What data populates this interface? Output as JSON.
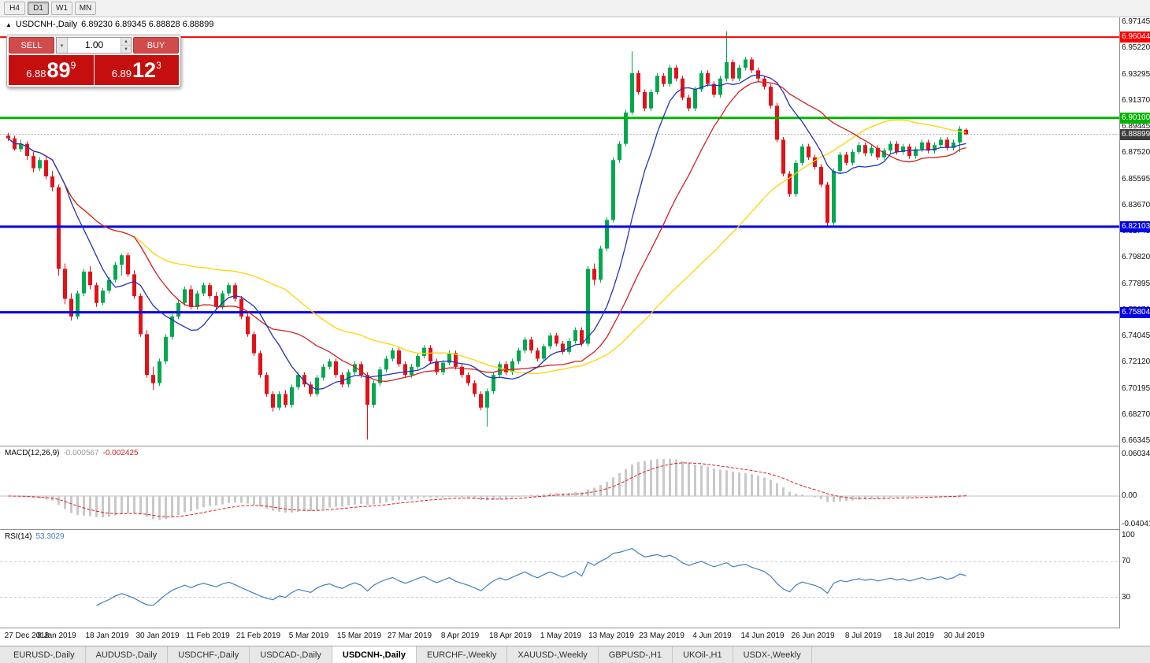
{
  "toolbar": {
    "timeframes": [
      "H4",
      "D1",
      "W1",
      "MN"
    ],
    "active_timeframe": "D1"
  },
  "chart": {
    "collapse_icon": "▲",
    "symbol_label": "USDCNH-,Daily",
    "ohlc_values": "6.89230 6.89345 6.88828 6.88899"
  },
  "trade_panel": {
    "sell_label": "SELL",
    "buy_label": "BUY",
    "volume_value": "1.00",
    "sell_price_base": "6.88",
    "sell_price_big": "89",
    "sell_price_sup": "9",
    "buy_price_base": "6.89",
    "buy_price_big": "12",
    "buy_price_sup": "3"
  },
  "price_axis": {
    "ticks": [
      "6.97145",
      "6.95220",
      "6.93295",
      "6.91370",
      "6.89445",
      "6.87520",
      "6.85595",
      "6.83670",
      "6.81745",
      "6.79820",
      "6.77895",
      "6.75970",
      "6.74045",
      "6.72120",
      "6.70195",
      "6.68270",
      "6.66345"
    ],
    "badges": [
      {
        "label": "6.96044",
        "price": 6.96044,
        "bg": "#ff0000"
      },
      {
        "label": "6.90100",
        "price": 6.901,
        "bg": "#00b400"
      },
      {
        "label": "6.88899",
        "price": 6.88899,
        "bg": "#3c3c3c"
      },
      {
        "label": "6.82103",
        "price": 6.82103,
        "bg": "#0000e6"
      },
      {
        "label": "6.75804",
        "price": 6.75804,
        "bg": "#0000e6"
      }
    ]
  },
  "macd_panel": {
    "name_label": "MACD(12,26,9)",
    "value_main": "-0.000567",
    "value_signal": "-0.002425",
    "axis_labels": [
      {
        "label": "0.060342",
        "value": 0.060342
      },
      {
        "label": "0.00",
        "value": 0
      },
      {
        "label": "-0.040411",
        "value": -0.040411
      }
    ]
  },
  "rsi_panel": {
    "name_label": "RSI(14)",
    "value": "53.3029",
    "axis_labels": [
      {
        "label": "100",
        "value": 100
      },
      {
        "label": "70",
        "value": 70
      },
      {
        "label": "30",
        "value": 30
      }
    ]
  },
  "date_axis": [
    "27 Dec 2018",
    "8 Jan 2019",
    "18 Jan 2019",
    "30 Jan 2019",
    "11 Feb 2019",
    "21 Feb 2019",
    "5 Mar 2019",
    "15 Mar 2019",
    "27 Mar 2019",
    "8 Apr 2019",
    "18 Apr 2019",
    "1 May 2019",
    "13 May 2019",
    "23 May 2019",
    "4 Jun 2019",
    "14 Jun 2019",
    "26 Jun 2019",
    "8 Jul 2019",
    "18 Jul 2019",
    "30 Jul 2019"
  ],
  "tabs": {
    "items": [
      "EURUSD-,Daily",
      "AUDUSD-,Daily",
      "USDCHF-,Daily",
      "USDCAD-,Daily",
      "USDCNH-,Daily",
      "EURCHF-,Weekly",
      "XAUUSD-,Weekly",
      "GBPUSD-,H1",
      "UKOil-,H1",
      "USDX-,Weekly"
    ],
    "active": "USDCNH-,Daily"
  },
  "chart_data": {
    "type": "candlestick",
    "title": "USDCNH-,Daily",
    "y_range": [
      6.66,
      6.975
    ],
    "colors": {
      "up": "#00a84f",
      "down": "#e31219",
      "ma_fast": "#2233bb",
      "ma_mid": "#d02020",
      "ma_slow": "#ffd400",
      "macd_hist": "#c9c9c9",
      "macd_signal": "#e02020",
      "rsi": "#3f7fc1",
      "current_price_line": "#b0b0b0"
    },
    "hlines": [
      {
        "price": 6.96044,
        "color": "#ff0000",
        "width": 2
      },
      {
        "price": 6.901,
        "color": "#00b400",
        "width": 3
      },
      {
        "price": 6.82103,
        "color": "#0000e6",
        "width": 3
      },
      {
        "price": 6.75804,
        "color": "#0000e6",
        "width": 3
      }
    ],
    "current_price": 6.88899,
    "ma_periods": {
      "fast": 10,
      "mid": 21,
      "slow": 45
    },
    "macd_params": {
      "fast": 12,
      "slow": 26,
      "signal": 9,
      "y_range": [
        -0.0478,
        0.0705
      ]
    },
    "rsi_params": {
      "period": 14,
      "levels": [
        70,
        30
      ],
      "y_range": [
        -5,
        105
      ]
    },
    "candles": [
      [
        6.888,
        6.89,
        6.884,
        6.886
      ],
      [
        6.886,
        6.888,
        6.877,
        6.878
      ],
      [
        6.878,
        6.885,
        6.876,
        6.882
      ],
      [
        6.882,
        6.884,
        6.87,
        6.873
      ],
      [
        6.873,
        6.876,
        6.861,
        6.864
      ],
      [
        6.864,
        6.872,
        6.862,
        6.87
      ],
      [
        6.87,
        6.873,
        6.856,
        6.858
      ],
      [
        6.858,
        6.862,
        6.847,
        6.85
      ],
      [
        6.85,
        6.852,
        6.785,
        6.79
      ],
      [
        6.79,
        6.794,
        6.764,
        6.768
      ],
      [
        6.768,
        6.772,
        6.752,
        6.755
      ],
      [
        6.755,
        6.774,
        6.753,
        6.772
      ],
      [
        6.772,
        6.79,
        6.77,
        6.788
      ],
      [
        6.788,
        6.792,
        6.775,
        6.778
      ],
      [
        6.778,
        6.78,
        6.762,
        6.765
      ],
      [
        6.765,
        6.776,
        6.763,
        6.774
      ],
      [
        6.774,
        6.784,
        6.772,
        6.782
      ],
      [
        6.782,
        6.795,
        6.78,
        6.793
      ],
      [
        6.793,
        6.801,
        6.785,
        6.8
      ],
      [
        6.8,
        6.802,
        6.784,
        6.786
      ],
      [
        6.786,
        6.789,
        6.768,
        6.77
      ],
      [
        6.77,
        6.772,
        6.74,
        6.742
      ],
      [
        6.742,
        6.745,
        6.71,
        6.712
      ],
      [
        6.712,
        6.718,
        6.701,
        6.706
      ],
      [
        6.706,
        6.724,
        6.704,
        6.722
      ],
      [
        6.722,
        6.742,
        6.72,
        6.74
      ],
      [
        6.74,
        6.757,
        6.738,
        6.755
      ],
      [
        6.755,
        6.767,
        6.753,
        6.765
      ],
      [
        6.765,
        6.777,
        6.763,
        6.775
      ],
      [
        6.775,
        6.778,
        6.76,
        6.762
      ],
      [
        6.762,
        6.774,
        6.76,
        6.772
      ],
      [
        6.772,
        6.78,
        6.77,
        6.778
      ],
      [
        6.778,
        6.78,
        6.768,
        6.77
      ],
      [
        6.77,
        6.773,
        6.76,
        6.762
      ],
      [
        6.762,
        6.774,
        6.76,
        6.772
      ],
      [
        6.772,
        6.78,
        6.77,
        6.778
      ],
      [
        6.778,
        6.78,
        6.766,
        6.768
      ],
      [
        6.768,
        6.77,
        6.753,
        6.755
      ],
      [
        6.755,
        6.757,
        6.74,
        6.742
      ],
      [
        6.742,
        6.744,
        6.726,
        6.728
      ],
      [
        6.728,
        6.73,
        6.71,
        6.712
      ],
      [
        6.712,
        6.714,
        6.696,
        6.698
      ],
      [
        6.698,
        6.7,
        6.685,
        6.688
      ],
      [
        6.688,
        6.7,
        6.686,
        6.698
      ],
      [
        6.698,
        6.701,
        6.688,
        6.69
      ],
      [
        6.69,
        6.705,
        6.688,
        6.703
      ],
      [
        6.703,
        6.714,
        6.701,
        6.712
      ],
      [
        6.712,
        6.714,
        6.703,
        6.705
      ],
      [
        6.705,
        6.707,
        6.696,
        6.698
      ],
      [
        6.698,
        6.712,
        6.696,
        6.71
      ],
      [
        6.71,
        6.72,
        6.708,
        6.718
      ],
      [
        6.718,
        6.724,
        6.716,
        6.722
      ],
      [
        6.722,
        6.724,
        6.71,
        6.712
      ],
      [
        6.712,
        6.714,
        6.703,
        6.705
      ],
      [
        6.705,
        6.716,
        6.703,
        6.714
      ],
      [
        6.714,
        6.722,
        6.712,
        6.72
      ],
      [
        6.72,
        6.722,
        6.71,
        6.712
      ],
      [
        6.712,
        6.714,
        6.6645,
        6.69
      ],
      [
        6.69,
        6.708,
        6.688,
        6.706
      ],
      [
        6.706,
        6.718,
        6.704,
        6.716
      ],
      [
        6.716,
        6.726,
        6.714,
        6.724
      ],
      [
        6.724,
        6.732,
        6.722,
        6.73
      ],
      [
        6.73,
        6.732,
        6.718,
        6.72
      ],
      [
        6.72,
        6.722,
        6.71,
        6.712
      ],
      [
        6.712,
        6.72,
        6.71,
        6.718
      ],
      [
        6.718,
        6.728,
        6.716,
        6.726
      ],
      [
        6.726,
        6.734,
        6.724,
        6.732
      ],
      [
        6.732,
        6.734,
        6.72,
        6.722
      ],
      [
        6.722,
        6.724,
        6.712,
        6.714
      ],
      [
        6.714,
        6.723,
        6.712,
        6.721
      ],
      [
        6.721,
        6.73,
        6.719,
        6.728
      ],
      [
        6.728,
        6.73,
        6.716,
        6.718
      ],
      [
        6.718,
        6.72,
        6.71,
        6.712
      ],
      [
        6.712,
        6.714,
        6.704,
        6.706
      ],
      [
        6.706,
        6.708,
        6.696,
        6.698
      ],
      [
        6.698,
        6.7,
        6.686,
        6.688
      ],
      [
        6.688,
        6.702,
        6.674,
        6.7
      ],
      [
        6.7,
        6.714,
        6.698,
        6.712
      ],
      [
        6.712,
        6.722,
        6.71,
        6.72
      ],
      [
        6.72,
        6.722,
        6.712,
        6.714
      ],
      [
        6.714,
        6.724,
        6.712,
        6.722
      ],
      [
        6.722,
        6.732,
        6.72,
        6.73
      ],
      [
        6.73,
        6.74,
        6.728,
        6.738
      ],
      [
        6.738,
        6.74,
        6.728,
        6.73
      ],
      [
        6.73,
        6.732,
        6.722,
        6.724
      ],
      [
        6.724,
        6.735,
        6.722,
        6.733
      ],
      [
        6.733,
        6.743,
        6.731,
        6.741
      ],
      [
        6.741,
        6.743,
        6.733,
        6.735
      ],
      [
        6.735,
        6.737,
        6.727,
        6.729
      ],
      [
        6.729,
        6.739,
        6.727,
        6.737
      ],
      [
        6.737,
        6.747,
        6.735,
        6.745
      ],
      [
        6.745,
        6.747,
        6.733,
        6.735
      ],
      [
        6.735,
        6.792,
        6.733,
        6.79
      ],
      [
        6.79,
        6.794,
        6.778,
        6.782
      ],
      [
        6.782,
        6.807,
        6.78,
        6.805
      ],
      [
        6.805,
        6.828,
        6.803,
        6.826
      ],
      [
        6.826,
        6.872,
        6.824,
        6.87
      ],
      [
        6.87,
        6.884,
        6.868,
        6.882
      ],
      [
        6.882,
        6.907,
        6.88,
        6.905
      ],
      [
        6.905,
        6.95,
        6.903,
        6.934
      ],
      [
        6.934,
        6.936,
        6.918,
        6.92
      ],
      [
        6.92,
        6.922,
        6.906,
        6.908
      ],
      [
        6.908,
        6.922,
        6.906,
        6.92
      ],
      [
        6.92,
        6.934,
        6.918,
        6.932
      ],
      [
        6.932,
        6.934,
        6.924,
        6.926
      ],
      [
        6.926,
        6.94,
        6.924,
        6.938
      ],
      [
        6.938,
        6.94,
        6.928,
        6.93
      ],
      [
        6.93,
        6.932,
        6.914,
        6.916
      ],
      [
        6.916,
        6.918,
        6.906,
        6.908
      ],
      [
        6.908,
        6.924,
        6.906,
        6.922
      ],
      [
        6.922,
        6.936,
        6.92,
        6.934
      ],
      [
        6.934,
        6.936,
        6.924,
        6.926
      ],
      [
        6.926,
        6.928,
        6.916,
        6.918
      ],
      [
        6.918,
        6.932,
        6.916,
        6.93
      ],
      [
        6.93,
        6.9648,
        6.928,
        6.942
      ],
      [
        6.942,
        6.944,
        6.928,
        6.93
      ],
      [
        6.93,
        6.94,
        6.928,
        6.938
      ],
      [
        6.938,
        6.946,
        6.936,
        6.944
      ],
      [
        6.944,
        6.946,
        6.934,
        6.936
      ],
      [
        6.936,
        6.938,
        6.928,
        6.93
      ],
      [
        6.93,
        6.932,
        6.922,
        6.924
      ],
      [
        6.924,
        6.926,
        6.908,
        6.91
      ],
      [
        6.91,
        6.912,
        6.883,
        6.885
      ],
      [
        6.885,
        6.887,
        6.858,
        6.86
      ],
      [
        6.86,
        6.862,
        6.843,
        6.845
      ],
      [
        6.845,
        6.87,
        6.843,
        6.868
      ],
      [
        6.868,
        6.882,
        6.866,
        6.88
      ],
      [
        6.88,
        6.882,
        6.87,
        6.872
      ],
      [
        6.872,
        6.874,
        6.863,
        6.865
      ],
      [
        6.865,
        6.867,
        6.85,
        6.852
      ],
      [
        6.852,
        6.854,
        6.821,
        6.824
      ],
      [
        6.824,
        6.864,
        6.822,
        6.862
      ],
      [
        6.862,
        6.876,
        6.86,
        6.874
      ],
      [
        6.874,
        6.876,
        6.866,
        6.868
      ],
      [
        6.868,
        6.878,
        6.866,
        6.876
      ],
      [
        6.876,
        6.883,
        6.874,
        6.881
      ],
      [
        6.881,
        6.883,
        6.873,
        6.875
      ],
      [
        6.875,
        6.881,
        6.873,
        6.879
      ],
      [
        6.879,
        6.881,
        6.87,
        6.872
      ],
      [
        6.872,
        6.879,
        6.87,
        6.877
      ],
      [
        6.877,
        6.884,
        6.875,
        6.882
      ],
      [
        6.882,
        6.884,
        6.874,
        6.876
      ],
      [
        6.876,
        6.882,
        6.874,
        6.88
      ],
      [
        6.88,
        6.882,
        6.871,
        6.873
      ],
      [
        6.873,
        6.88,
        6.871,
        6.878
      ],
      [
        6.878,
        6.885,
        6.876,
        6.883
      ],
      [
        6.883,
        6.885,
        6.875,
        6.877
      ],
      [
        6.877,
        6.883,
        6.875,
        6.881
      ],
      [
        6.881,
        6.887,
        6.879,
        6.885
      ],
      [
        6.885,
        6.887,
        6.877,
        6.879
      ],
      [
        6.879,
        6.885,
        6.877,
        6.883
      ],
      [
        6.883,
        6.895,
        6.876,
        6.893
      ],
      [
        6.8923,
        6.89345,
        6.88828,
        6.88899
      ]
    ]
  }
}
